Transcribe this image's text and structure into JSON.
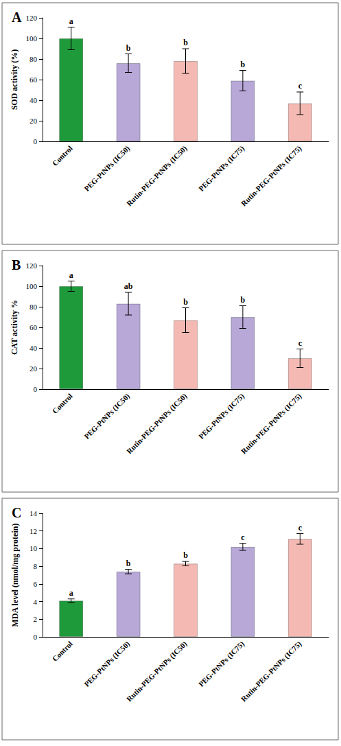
{
  "chart_data": [
    {
      "type": "bar",
      "title": "A",
      "y_label": "SOD activity (%)",
      "categories": [
        "Control",
        "PEG-PtNPs (IC50)",
        "Rutin-PEG-PtNPs (IC50)",
        "PEG-PtNPs (IC75)",
        "Rutin-PEG-PtNPs (IC75)"
      ],
      "values": [
        100,
        76,
        78,
        59,
        37
      ],
      "errors": [
        11,
        9,
        12,
        10,
        11
      ],
      "annotations": [
        "a",
        "b",
        "b",
        "b",
        "c"
      ],
      "colors": [
        "#1f9a3a",
        "#b7a8d8",
        "#f4b9b2",
        "#b7a8d8",
        "#f4b9b2"
      ],
      "ylim": [
        0,
        120
      ],
      "yticks": [
        0,
        20,
        40,
        60,
        80,
        100,
        120
      ],
      "grid": false
    },
    {
      "type": "bar",
      "title": "B",
      "y_label": "CAT activity %",
      "categories": [
        "Control",
        "PEG-PtNPs (IC50)",
        "Rutin-PEG-PtNPs (IC50)",
        "PEG-PtNPs (IC75)",
        "Rutin-PEG-PtNPs (IC75)"
      ],
      "values": [
        100,
        83,
        67,
        70,
        30
      ],
      "errors": [
        5,
        11,
        12,
        11,
        9
      ],
      "annotations": [
        "a",
        "ab",
        "b",
        "b",
        "c"
      ],
      "colors": [
        "#1f9a3a",
        "#b7a8d8",
        "#f4b9b2",
        "#b7a8d8",
        "#f4b9b2"
      ],
      "ylim": [
        0,
        120
      ],
      "yticks": [
        0,
        20,
        40,
        60,
        80,
        100,
        120
      ],
      "grid": false
    },
    {
      "type": "bar",
      "title": "C",
      "y_label": "MDA level (nmol/mg protein)",
      "categories": [
        "Control",
        "PEG-PtNPs (IC50)",
        "Rutin-PEG-PtNPs (IC50)",
        "PEG-PtNPs (IC75)",
        "Rutin-PEG-PtNPs (IC75)"
      ],
      "values": [
        4.1,
        7.4,
        8.3,
        10.2,
        11.1
      ],
      "errors": [
        0.2,
        0.25,
        0.25,
        0.4,
        0.6
      ],
      "annotations": [
        "a",
        "b",
        "b",
        "c",
        "c"
      ],
      "colors": [
        "#1f9a3a",
        "#b7a8d8",
        "#f4b9b2",
        "#b7a8d8",
        "#f4b9b2"
      ],
      "ylim": [
        0,
        14
      ],
      "yticks": [
        0,
        2,
        4,
        6,
        8,
        10,
        12,
        14
      ],
      "grid": false
    }
  ]
}
